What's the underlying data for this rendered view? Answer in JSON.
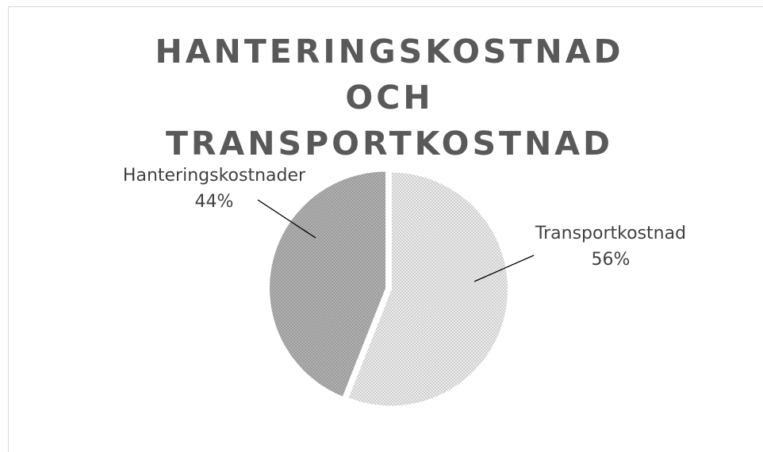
{
  "chart_data": {
    "type": "pie",
    "title": "HANTERINGSKOSTNAD OCH TRANSPORTKOSTNAD",
    "categories": [
      "Transportkostnad",
      "Hanteringskostnader"
    ],
    "values": [
      56,
      44
    ],
    "value_labels": [
      "56%",
      "44%"
    ],
    "colors": [
      "#d4d4d4",
      "#a3a3a3"
    ]
  }
}
